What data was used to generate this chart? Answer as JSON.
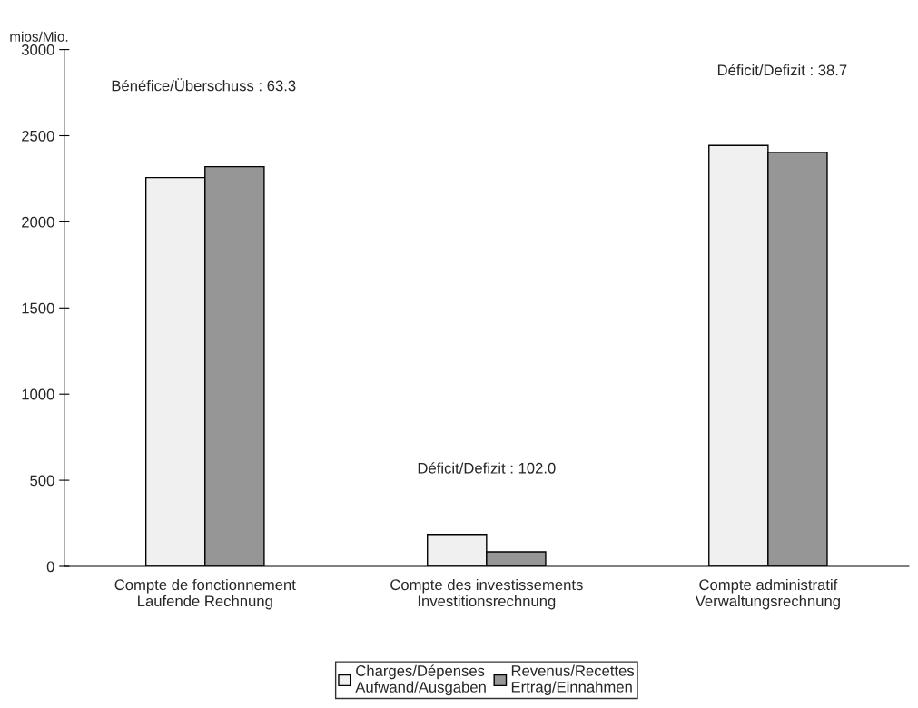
{
  "chart_data": {
    "type": "bar",
    "ylabel": "mios/Mio.",
    "categories": [
      "Compte de fonctionnement\nLaufende Rechnung",
      "Compte des investissements\nInvestitionsrechnung",
      "Compte administratif\nVerwaltungsrechnung"
    ],
    "series": [
      {
        "name": "Charges/Dépenses\nAufwand/Ausgaben",
        "color": "#f0f0f0",
        "values": [
          2257,
          186,
          2443
        ]
      },
      {
        "name": "Revenus/Recettes\nErtrag/Einnahmen",
        "color": "#969696",
        "values": [
          2320,
          84,
          2404
        ]
      }
    ],
    "ylim": [
      0,
      3000
    ],
    "yticks": [
      0,
      500,
      1000,
      1500,
      2000,
      2500,
      3000
    ],
    "annotations": [
      "Bénéfice/Überschuss : 63.3",
      "Déficit/Defizit : 102.0",
      "Déficit/Defizit : 38.7"
    ],
    "grid": false,
    "legend": "bottom"
  }
}
